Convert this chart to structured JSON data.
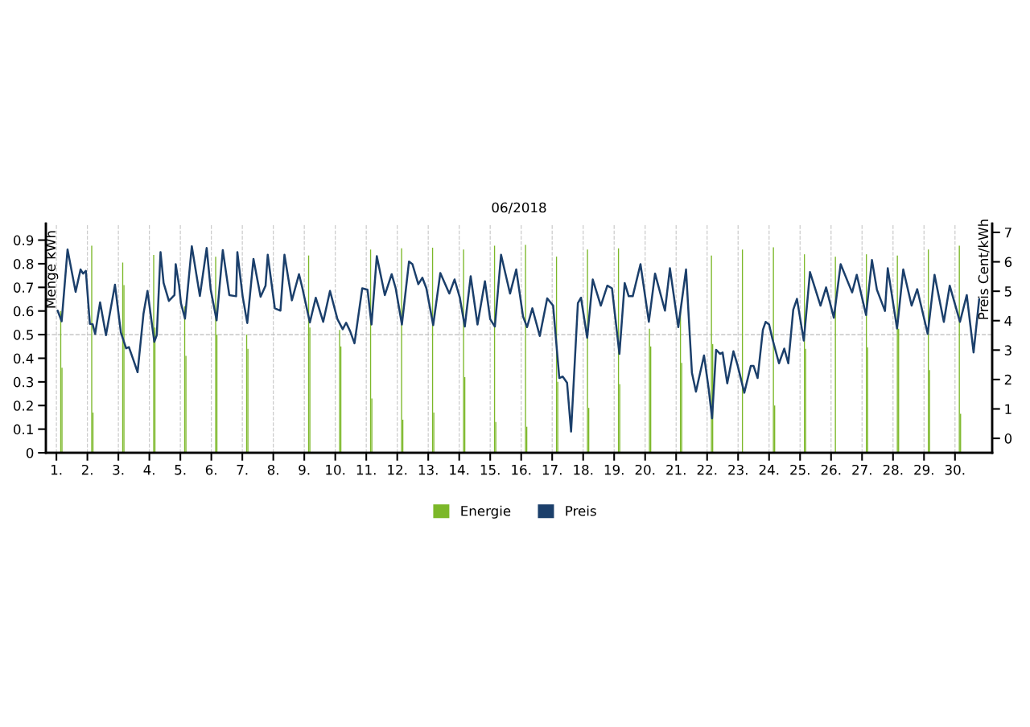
{
  "chart_data": {
    "type": "bar",
    "title": "06/2018",
    "ylabel": "Menge kWh",
    "y2label": "Preis Cent/kWh",
    "xlim": [
      0.66,
      31.2
    ],
    "xticks": [
      {
        "value": 1,
        "label": "1."
      },
      {
        "value": 2,
        "label": "2."
      },
      {
        "value": 3,
        "label": "3."
      },
      {
        "value": 4,
        "label": "4."
      },
      {
        "value": 5,
        "label": "5."
      },
      {
        "value": 6,
        "label": "6."
      },
      {
        "value": 7,
        "label": "7."
      },
      {
        "value": 8,
        "label": "8."
      },
      {
        "value": 9,
        "label": "9."
      },
      {
        "value": 10,
        "label": "10."
      },
      {
        "value": 11,
        "label": "11."
      },
      {
        "value": 12,
        "label": "12."
      },
      {
        "value": 13,
        "label": "13."
      },
      {
        "value": 14,
        "label": "14."
      },
      {
        "value": 15,
        "label": "15."
      },
      {
        "value": 16,
        "label": "16."
      },
      {
        "value": 17,
        "label": "17."
      },
      {
        "value": 18,
        "label": "18."
      },
      {
        "value": 19,
        "label": "19."
      },
      {
        "value": 20,
        "label": "20."
      },
      {
        "value": 21,
        "label": "21."
      },
      {
        "value": 22,
        "label": "22."
      },
      {
        "value": 23,
        "label": "23."
      },
      {
        "value": 24,
        "label": "24."
      },
      {
        "value": 25,
        "label": "25."
      },
      {
        "value": 26,
        "label": "26."
      },
      {
        "value": 27,
        "label": "27."
      },
      {
        "value": 28,
        "label": "28."
      },
      {
        "value": 29,
        "label": "29."
      },
      {
        "value": 30,
        "label": "30."
      }
    ],
    "ylim": [
      0,
      0.97
    ],
    "yticks": [
      0,
      0.1,
      0.2,
      0.3,
      0.4,
      0.5,
      0.6,
      0.7,
      0.8,
      0.9
    ],
    "y2lim": [
      -0.49,
      7.3
    ],
    "y2ticks": [
      0,
      1,
      2,
      3,
      4,
      5,
      6,
      7
    ],
    "grid": "x",
    "legend": "bottom",
    "ref_lines": [
      {
        "axis": "y",
        "value": 0.5,
        "color": "#bbbbbb",
        "line_style": "dashed"
      }
    ],
    "series": [
      {
        "name": "Energie",
        "color": "#7cb829",
        "x": [
          1.14,
          1.18,
          2.14,
          2.18,
          3.14,
          3.18,
          4.14,
          4.18,
          5.14,
          5.18,
          6.14,
          6.18,
          7.14,
          7.18,
          8.14,
          8.18,
          9.14,
          9.18,
          10.14,
          10.18,
          11.14,
          11.18,
          12.14,
          12.18,
          13.14,
          13.18,
          14.14,
          14.18,
          15.14,
          15.18,
          16.14,
          16.18,
          17.14,
          17.18,
          18.14,
          18.18,
          19.14,
          19.18,
          20.14,
          20.18,
          21.14,
          21.18,
          22.14,
          22.18,
          23.14,
          23.18,
          24.14,
          24.18,
          25.14,
          25.18,
          26.14,
          26.18,
          27.14,
          27.18,
          28.14,
          28.18,
          29.14,
          29.18,
          30.14,
          30.18
        ],
        "values": [
          0.6,
          0.36,
          0.876,
          0.17,
          0.805,
          0.71,
          0.837,
          0.53,
          0.62,
          0.41,
          0.83,
          0.5,
          0.5,
          0.44,
          null,
          null,
          0.835,
          0.53,
          0.52,
          0.45,
          0.86,
          0.23,
          0.865,
          0.14,
          0.868,
          0.17,
          0.86,
          0.32,
          0.876,
          0.13,
          0.88,
          0.11,
          0.83,
          0.3,
          0.86,
          0.19,
          0.865,
          0.29,
          0.525,
          0.45,
          0.6,
          0.38,
          0.835,
          0.46,
          0.86,
          null,
          0.87,
          0.2,
          0.84,
          0.44,
          0.83,
          null,
          0.84,
          0.446,
          0.835,
          0.525,
          0.86,
          0.35,
          0.876,
          0.165
        ]
      },
      {
        "name": "Preis",
        "type": "line",
        "axis": "y2",
        "color": "#1b3f6b",
        "x": [
          1.04,
          1.17,
          1.36,
          1.62,
          1.78,
          1.86,
          1.95,
          2.08,
          2.17,
          2.25,
          2.41,
          2.6,
          2.89,
          3.08,
          3.25,
          3.34,
          3.49,
          3.62,
          3.81,
          3.94,
          4.16,
          4.24,
          4.36,
          4.46,
          4.63,
          4.81,
          4.85,
          4.96,
          5.02,
          5.15,
          5.37,
          5.63,
          5.85,
          5.98,
          6.17,
          6.37,
          6.58,
          6.8,
          6.84,
          7.01,
          7.16,
          7.36,
          7.59,
          7.75,
          7.82,
          8.05,
          8.23,
          8.36,
          8.6,
          8.83,
          8.94,
          9.18,
          9.37,
          9.61,
          9.83,
          10.07,
          10.24,
          10.35,
          10.48,
          10.62,
          10.87,
          11.04,
          11.17,
          11.34,
          11.6,
          11.82,
          11.95,
          12.15,
          12.38,
          12.49,
          12.68,
          12.81,
          12.94,
          13.16,
          13.39,
          13.68,
          13.85,
          14.02,
          14.18,
          14.37,
          14.59,
          14.83,
          15.0,
          15.15,
          15.35,
          15.64,
          15.84,
          16.06,
          16.19,
          16.36,
          16.6,
          16.84,
          17.03,
          17.23,
          17.34,
          17.48,
          17.61,
          17.83,
          17.93,
          18.13,
          18.31,
          18.57,
          18.78,
          18.93,
          19.17,
          19.34,
          19.47,
          19.6,
          19.85,
          20.12,
          20.32,
          20.64,
          20.8,
          21.07,
          21.32,
          21.51,
          21.64,
          21.9,
          22.05,
          22.16,
          22.29,
          22.42,
          22.5,
          22.65,
          22.85,
          22.98,
          23.2,
          23.41,
          23.5,
          23.63,
          23.8,
          23.89,
          24.0,
          24.11,
          24.32,
          24.49,
          24.62,
          24.78,
          24.9,
          25.12,
          25.32,
          25.66,
          25.84,
          26.09,
          26.31,
          26.68,
          26.83,
          27.13,
          27.32,
          27.48,
          27.74,
          27.83,
          28.13,
          28.33,
          28.6,
          28.78,
          29.12,
          29.34,
          29.64,
          29.83,
          30.16,
          30.38,
          30.6,
          30.78
        ],
        "values": [
          4.34,
          3.98,
          6.42,
          4.98,
          5.74,
          5.6,
          5.69,
          3.89,
          3.88,
          3.55,
          4.62,
          3.51,
          5.22,
          3.6,
          3.06,
          3.1,
          2.65,
          2.25,
          4.23,
          5.01,
          3.28,
          3.51,
          6.33,
          5.28,
          4.67,
          4.87,
          5.92,
          5.19,
          4.59,
          4.07,
          6.53,
          4.84,
          6.47,
          5.05,
          4.01,
          6.4,
          4.87,
          4.83,
          6.33,
          4.83,
          3.92,
          6.1,
          4.81,
          5.19,
          6.24,
          4.42,
          4.34,
          6.24,
          4.69,
          5.58,
          5.1,
          3.94,
          4.78,
          3.96,
          5.01,
          4.05,
          3.71,
          3.93,
          3.64,
          3.23,
          5.1,
          5.05,
          3.87,
          6.19,
          4.87,
          5.58,
          5.1,
          3.87,
          6.01,
          5.92,
          5.24,
          5.46,
          5.1,
          3.85,
          5.62,
          4.92,
          5.4,
          4.78,
          3.8,
          5.51,
          3.87,
          5.34,
          4.05,
          3.8,
          6.24,
          4.92,
          5.74,
          4.14,
          3.78,
          4.42,
          3.48,
          4.76,
          4.51,
          2.05,
          2.1,
          1.89,
          0.23,
          4.6,
          4.78,
          3.42,
          5.4,
          4.51,
          5.19,
          5.1,
          2.87,
          5.28,
          4.83,
          4.83,
          5.92,
          3.96,
          5.6,
          4.34,
          5.78,
          3.78,
          5.74,
          2.23,
          1.59,
          2.82,
          1.69,
          0.68,
          3.01,
          2.87,
          2.92,
          1.87,
          2.96,
          2.5,
          1.55,
          2.46,
          2.46,
          2.05,
          3.69,
          3.96,
          3.87,
          3.37,
          2.55,
          3.05,
          2.55,
          4.37,
          4.74,
          3.32,
          5.65,
          4.51,
          5.13,
          4.1,
          5.92,
          4.96,
          5.56,
          4.19,
          6.06,
          5.05,
          4.33,
          5.78,
          3.73,
          5.74,
          4.51,
          5.07,
          3.55,
          5.56,
          3.96,
          5.19,
          3.96,
          4.87,
          2.92,
          4.73
        ]
      }
    ]
  }
}
